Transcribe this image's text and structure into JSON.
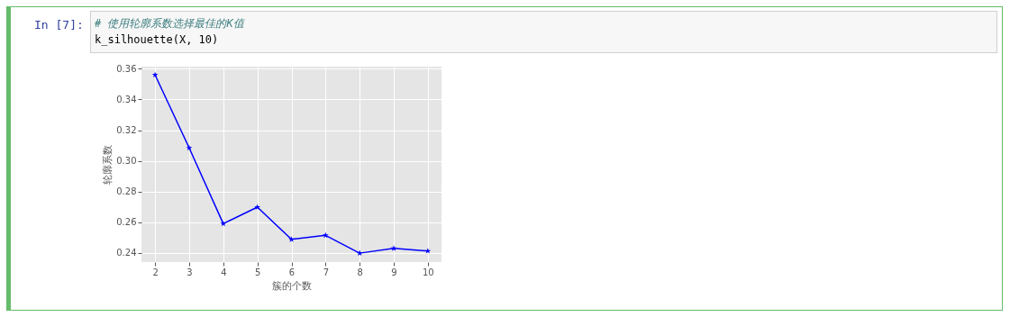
{
  "chart_data": {
    "type": "line",
    "x": [
      2,
      3,
      4,
      5,
      6,
      7,
      8,
      9,
      10
    ],
    "series": [
      {
        "color": "#0000ff",
        "values": [
          0.356,
          0.3084,
          0.259,
          0.2698,
          0.2488,
          0.2514,
          0.2398,
          0.2429,
          0.2412
        ]
      }
    ],
    "xlabel": "簇的个数",
    "ylabel": "轮廓系数",
    "xlim": [
      1.6,
      10.4
    ],
    "xticks": [
      2,
      3,
      4,
      5,
      6,
      7,
      8,
      9,
      10
    ],
    "ylim": [
      0.234,
      0.3614
    ],
    "yticks": [
      {
        "value": 0.24,
        "label": "0.24"
      },
      {
        "value": 0.26,
        "label": "0.26"
      },
      {
        "value": 0.28,
        "label": "0.28"
      },
      {
        "value": 0.3,
        "label": "0.30"
      },
      {
        "value": 0.32,
        "label": "0.32"
      },
      {
        "value": 0.34,
        "label": "0.34"
      },
      {
        "value": 0.36,
        "label": "0.36"
      }
    ],
    "grid": true,
    "marker": "star",
    "line_style": "solid",
    "annotations": [
      "In [7]:",
      "# 使用轮廓系数选择最佳的K值",
      "k_silhouette(X, 10)"
    ]
  }
}
